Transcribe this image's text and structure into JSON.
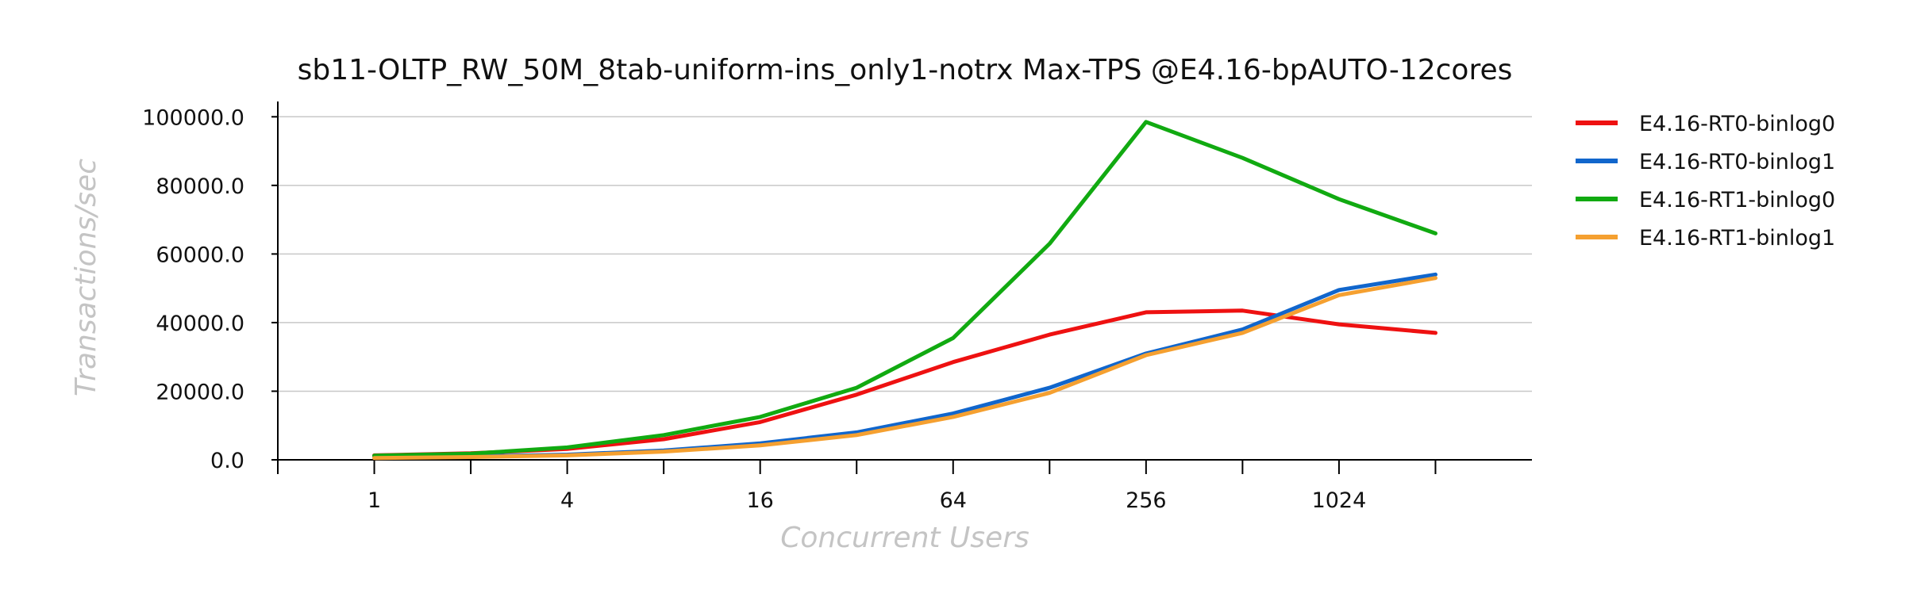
{
  "chart_data": {
    "type": "line",
    "title": "sb11-OLTP_RW_50M_8tab-uniform-ins_only1-notrx Max-TPS @E4.16-bpAUTO-12cores",
    "xlabel": "Concurrent Users",
    "ylabel": "Transactions/sec",
    "x": [
      1,
      2,
      4,
      8,
      16,
      32,
      64,
      128,
      256,
      512,
      1024,
      2048
    ],
    "x_tick_labels": [
      "1",
      "4",
      "16",
      "64",
      "256",
      "1024"
    ],
    "x_tick_values": [
      1,
      4,
      16,
      64,
      256,
      1024
    ],
    "x_scale": "log2",
    "xlim": [
      0.5,
      4096
    ],
    "ylim": [
      0,
      104000
    ],
    "y_ticks": [
      0,
      20000,
      40000,
      60000,
      80000,
      100000
    ],
    "y_tick_labels": [
      "0.0",
      "20000.0",
      "40000.0",
      "60000.0",
      "80000.0",
      "100000.0"
    ],
    "grid": true,
    "legend_position": "right",
    "series": [
      {
        "name": "E4.16-RT0-binlog0",
        "color": "#ee1111",
        "values": [
          1300,
          1900,
          3200,
          6000,
          11000,
          19000,
          28500,
          36500,
          43000,
          43500,
          39500,
          37000
        ]
      },
      {
        "name": "E4.16-RT0-binlog1",
        "color": "#1166cc",
        "values": [
          600,
          1000,
          1500,
          2700,
          4800,
          8000,
          13500,
          21000,
          31000,
          38000,
          49500,
          54000
        ]
      },
      {
        "name": "E4.16-RT1-binlog0",
        "color": "#11aa11",
        "values": [
          1200,
          1800,
          3600,
          7200,
          12500,
          21000,
          35500,
          63000,
          98500,
          88000,
          76000,
          66000
        ]
      },
      {
        "name": "E4.16-RT1-binlog1",
        "color": "#f5a030",
        "values": [
          500,
          800,
          1300,
          2400,
          4200,
          7200,
          12500,
          19500,
          30500,
          37000,
          48000,
          53000
        ]
      }
    ]
  }
}
